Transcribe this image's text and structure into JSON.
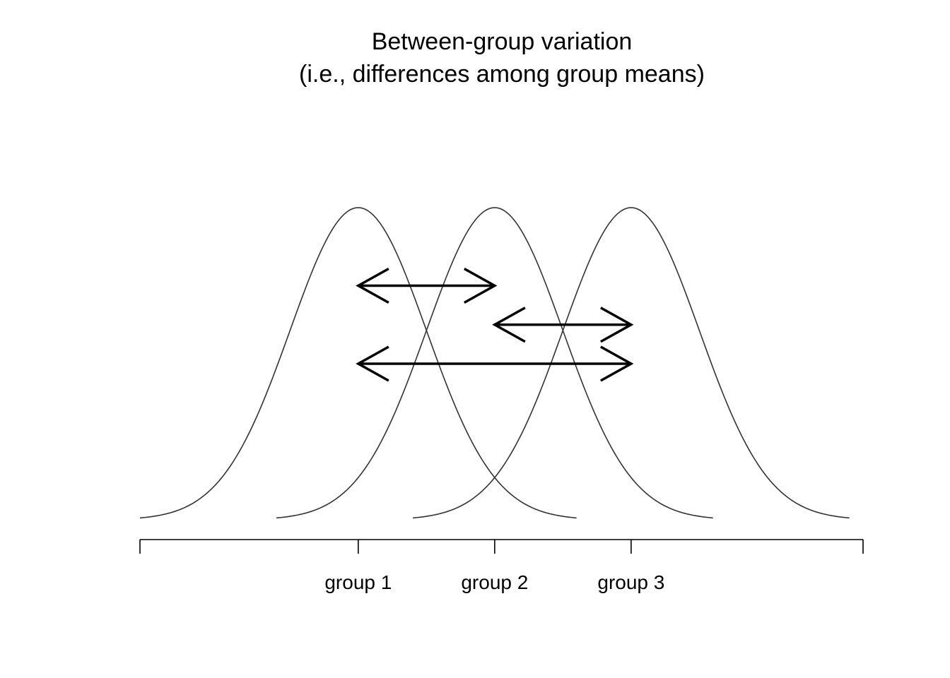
{
  "chart_data": {
    "type": "line",
    "title": "Between-group variation",
    "subtitle": "(i.e., differences among group means)",
    "xlabel": "",
    "ylabel": "",
    "xlim": [
      -3.2,
      7.4
    ],
    "grid": false,
    "x_ticks": [
      {
        "x": -3.2,
        "label": ""
      },
      {
        "x": 0,
        "label": "group 1"
      },
      {
        "x": 2,
        "label": "group 2"
      },
      {
        "x": 4,
        "label": "group 3"
      },
      {
        "x": 7.4,
        "label": ""
      }
    ],
    "series": [
      {
        "mean": 0,
        "sd": 1,
        "range": [
          -3.2,
          3.2
        ]
      },
      {
        "mean": 2,
        "sd": 1,
        "range": [
          -1.2,
          5.2
        ]
      },
      {
        "mean": 4,
        "sd": 1,
        "range": [
          0.8,
          7.2
        ]
      }
    ],
    "arrows": [
      {
        "from": 0,
        "to": 2,
        "level": 0.75
      },
      {
        "from": 2,
        "to": 4,
        "level": 0.625
      },
      {
        "from": 0,
        "to": 4,
        "level": 0.5
      }
    ],
    "colors": {
      "line": "#000000",
      "curve": "#333333"
    }
  }
}
